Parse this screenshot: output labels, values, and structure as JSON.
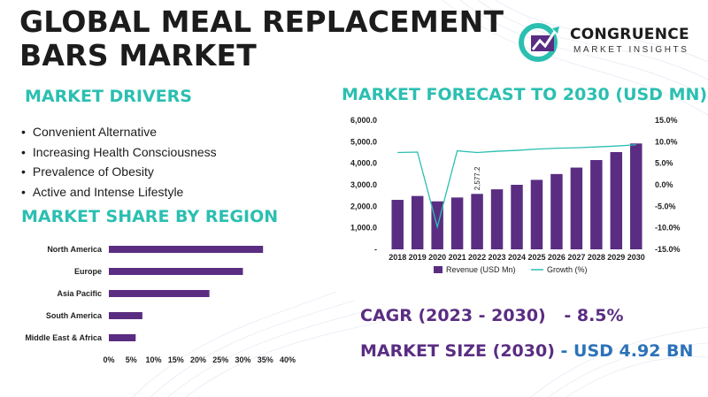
{
  "title_line1": "GLOBAL MEAL REPLACEMENT",
  "title_line2": "BARS MARKET",
  "logo": {
    "name": "CONGRUENCE",
    "tagline": "MARKET INSIGHTS",
    "colors": [
      "#2bbfb1",
      "#5a2d82"
    ]
  },
  "drivers": {
    "heading": "MARKET DRIVERS",
    "items": [
      "Convenient Alternative",
      "Increasing Health Consciousness",
      "Prevalence of Obesity",
      "Active and Intense Lifestyle"
    ]
  },
  "region": {
    "heading": "MARKET SHARE BY REGION"
  },
  "forecast": {
    "heading": "MARKET FORECAST TO 2030 (USD MN)"
  },
  "stats": {
    "cagr_label": "CAGR (2023 - 2030)",
    "cagr_value": "- 8.5%",
    "size_label": "MARKET SIZE (2030)",
    "size_value": "- USD 4.92 BN"
  },
  "chart_data": [
    {
      "type": "bar",
      "orientation": "horizontal",
      "categories": [
        "North America",
        "Europe",
        "Asia Pacific",
        "South America",
        "Middle East & Africa"
      ],
      "values": [
        34.5,
        30,
        22.5,
        7.5,
        6
      ],
      "xlim": [
        0,
        40
      ],
      "x_ticks": [
        "0%",
        "5%",
        "10%",
        "15%",
        "20%",
        "25%",
        "30%",
        "35%",
        "40%"
      ],
      "color": "#5a2d82"
    },
    {
      "type": "bar+line",
      "categories": [
        "2018",
        "2019",
        "2020",
        "2021",
        "2022",
        "2023",
        "2024",
        "2025",
        "2026",
        "2027",
        "2028",
        "2029",
        "2030"
      ],
      "series": [
        {
          "name": "Revenue (USD Mn)",
          "type": "bar",
          "axis": "left",
          "color": "#5a2d82",
          "values": [
            2300,
            2480,
            2230,
            2410,
            2577.2,
            2790,
            3000,
            3230,
            3500,
            3800,
            4150,
            4520,
            4920
          ]
        },
        {
          "name": "Growth (%)",
          "type": "line",
          "axis": "right",
          "color": "#2bbfb1",
          "values": [
            7.5,
            7.6,
            -9.8,
            7.9,
            7.5,
            7.8,
            8.0,
            8.3,
            8.5,
            8.6,
            8.8,
            9.0,
            9.3
          ]
        }
      ],
      "data_label": {
        "index": 4,
        "text": "2,577.2"
      },
      "ylim_left": [
        0,
        6000
      ],
      "y_ticks_left": [
        "-",
        "1,000.0",
        "2,000.0",
        "3,000.0",
        "4,000.0",
        "5,000.0",
        "6,000.0"
      ],
      "ylim_right": [
        -15,
        15
      ],
      "y_ticks_right": [
        "-15.0%",
        "-10.0%",
        "-5.0%",
        "0.0%",
        "5.0%",
        "10.0%",
        "15.0%"
      ],
      "legend": "bottom"
    }
  ]
}
